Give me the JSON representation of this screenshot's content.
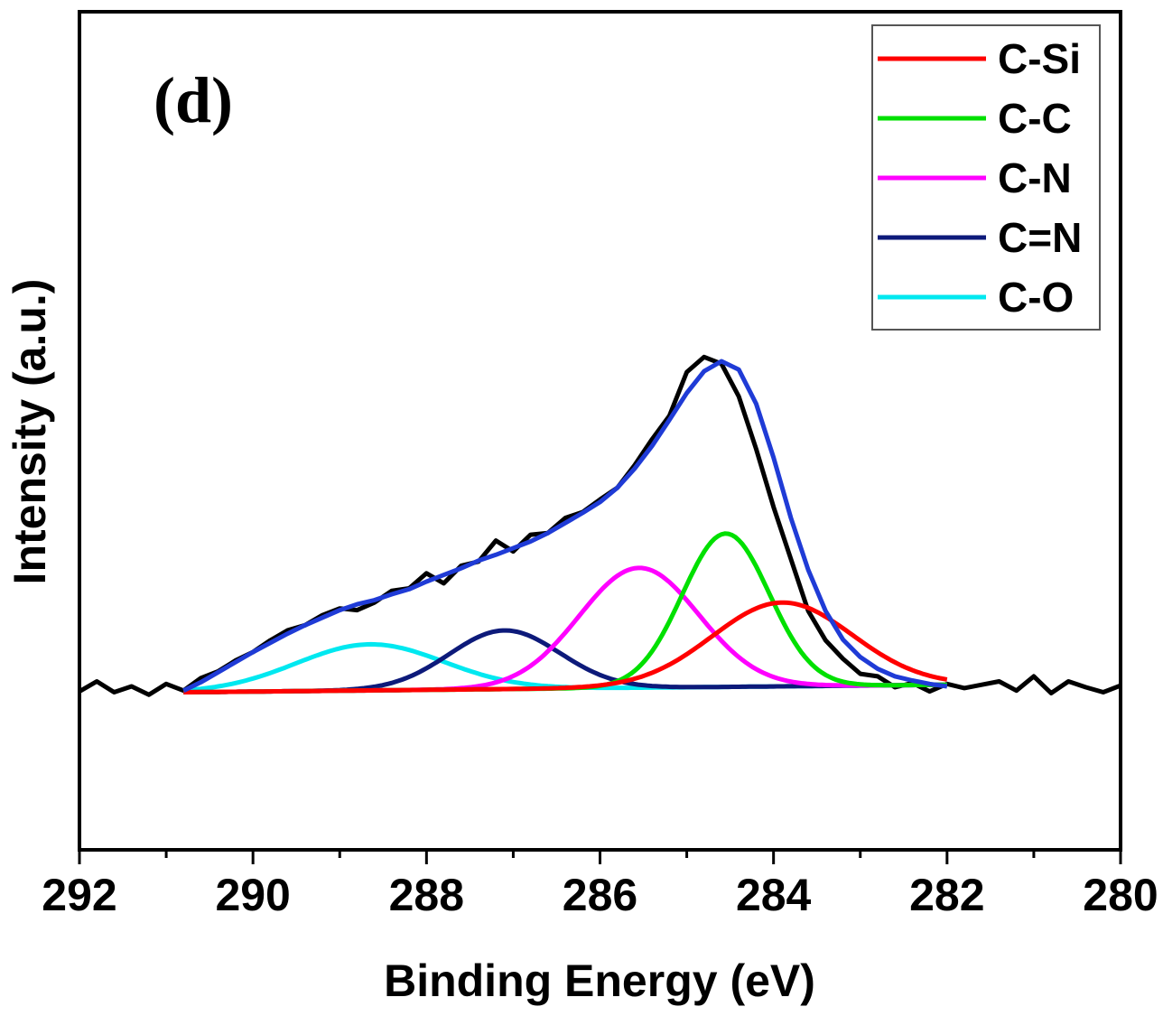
{
  "chart_data": {
    "type": "line",
    "panel_label": "(d)",
    "xlabel": "Binding Energy (eV)",
    "ylabel": "Intensity (a.u.)",
    "xlim": [
      292,
      280
    ],
    "x_reversed": true,
    "ylim": [
      0,
      1
    ],
    "x_ticks": [
      292,
      290,
      288,
      286,
      284,
      282,
      280
    ],
    "y_ticks_shown": false,
    "grid": false,
    "legend_position": "top-right",
    "raw_data": {
      "color": "#000000",
      "x": [
        292.0,
        291.8,
        291.6,
        291.4,
        291.2,
        291.0,
        290.8,
        290.6,
        290.4,
        290.2,
        290.0,
        289.8,
        289.6,
        289.4,
        289.2,
        289.0,
        288.8,
        288.6,
        288.4,
        288.2,
        288.0,
        287.8,
        287.6,
        287.4,
        287.2,
        287.0,
        286.8,
        286.6,
        286.4,
        286.2,
        286.0,
        285.8,
        285.6,
        285.4,
        285.2,
        285.0,
        284.8,
        284.6,
        284.4,
        284.2,
        284.0,
        283.8,
        283.6,
        283.4,
        283.2,
        283.0,
        282.8,
        282.6,
        282.4,
        282.2,
        282.0,
        281.8,
        281.6,
        281.4,
        281.2,
        281.0,
        280.8,
        280.6,
        280.4,
        280.2,
        280.0
      ],
      "y": [
        0.189,
        0.201,
        0.188,
        0.195,
        0.185,
        0.198,
        0.19,
        0.205,
        0.213,
        0.226,
        0.236,
        0.25,
        0.262,
        0.268,
        0.28,
        0.288,
        0.286,
        0.295,
        0.309,
        0.312,
        0.33,
        0.318,
        0.339,
        0.344,
        0.369,
        0.356,
        0.376,
        0.378,
        0.396,
        0.403,
        0.418,
        0.432,
        0.459,
        0.49,
        0.518,
        0.57,
        0.588,
        0.58,
        0.541,
        0.478,
        0.409,
        0.347,
        0.285,
        0.25,
        0.228,
        0.21,
        0.207,
        0.194,
        0.199,
        0.189,
        0.198,
        0.193,
        0.197,
        0.201,
        0.19,
        0.207,
        0.187,
        0.201,
        0.194,
        0.188,
        0.196
      ]
    },
    "envelope": {
      "color": "#1f3bd6",
      "x": [
        290.8,
        290.6,
        290.4,
        290.2,
        290.0,
        289.8,
        289.6,
        289.4,
        289.2,
        289.0,
        288.8,
        288.6,
        288.4,
        288.2,
        288.0,
        287.8,
        287.6,
        287.4,
        287.2,
        287.0,
        286.8,
        286.6,
        286.4,
        286.2,
        286.0,
        285.8,
        285.6,
        285.4,
        285.2,
        285.0,
        284.8,
        284.6,
        284.4,
        284.2,
        284.0,
        283.8,
        283.6,
        283.4,
        283.2,
        283.0,
        282.8,
        282.6,
        282.4,
        282.2,
        282.0
      ],
      "y": [
        0.19,
        0.2,
        0.212,
        0.224,
        0.236,
        0.247,
        0.258,
        0.268,
        0.277,
        0.286,
        0.293,
        0.298,
        0.305,
        0.311,
        0.32,
        0.328,
        0.336,
        0.345,
        0.352,
        0.36,
        0.368,
        0.378,
        0.39,
        0.402,
        0.415,
        0.432,
        0.455,
        0.482,
        0.513,
        0.545,
        0.571,
        0.583,
        0.573,
        0.532,
        0.468,
        0.396,
        0.334,
        0.285,
        0.251,
        0.23,
        0.216,
        0.207,
        0.202,
        0.198,
        0.195
      ]
    },
    "baseline": {
      "x0": 290.8,
      "y0": 0.188,
      "x1": 282.0,
      "y1": 0.197
    },
    "series": [
      {
        "name": "C-Si",
        "color": "#ff0000",
        "type": "gaussian",
        "center": 283.9,
        "fwhm": 1.9,
        "height": 0.1
      },
      {
        "name": "C-C",
        "color": "#00e000",
        "type": "gaussian",
        "center": 284.55,
        "fwhm": 1.18,
        "height": 0.183
      },
      {
        "name": "C-N",
        "color": "#ff00ff",
        "type": "gaussian",
        "center": 285.55,
        "fwhm": 1.62,
        "height": 0.143
      },
      {
        "name": "C=N",
        "color": "#0d1a7a",
        "type": "gaussian",
        "center": 287.1,
        "fwhm": 1.5,
        "height": 0.07
      },
      {
        "name": "C-O",
        "color": "#00e8f0",
        "type": "gaussian",
        "center": 288.65,
        "fwhm": 2.0,
        "height": 0.055
      }
    ]
  }
}
